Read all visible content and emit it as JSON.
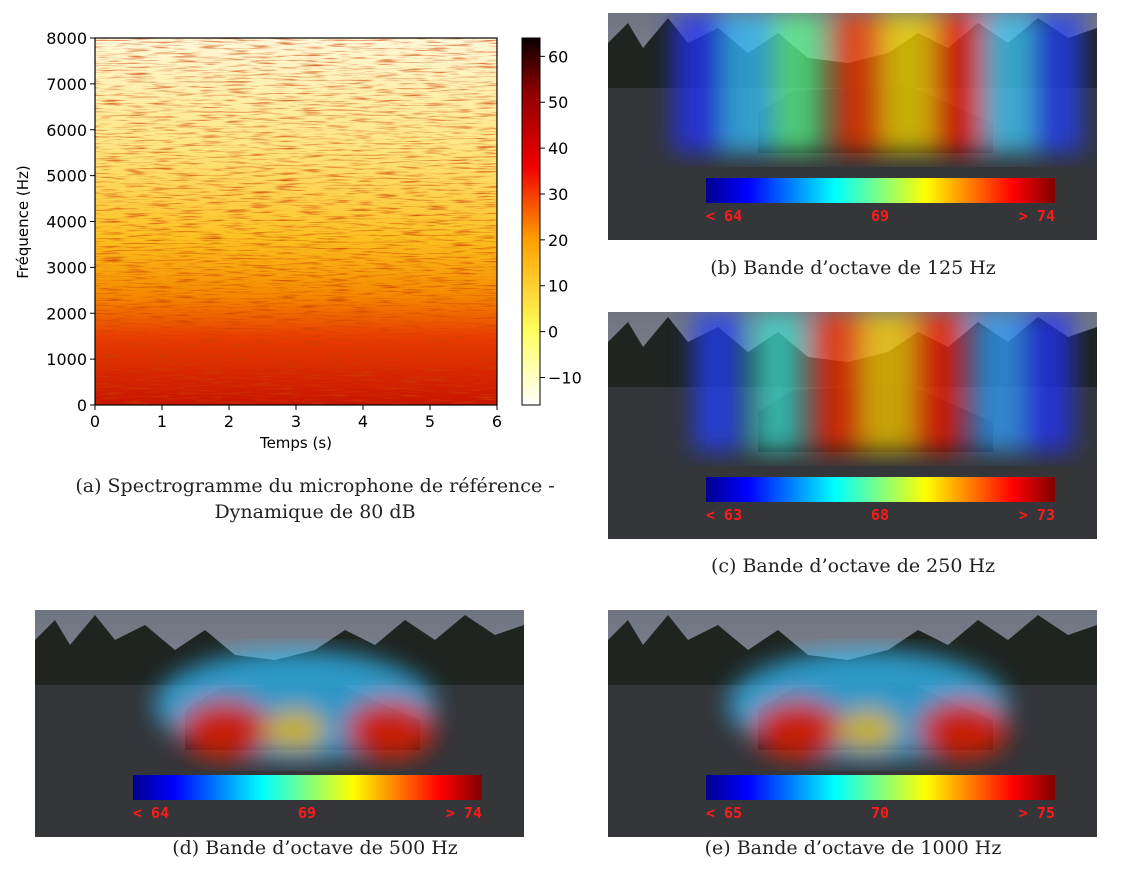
{
  "spectrogram": {
    "type": "spectrogram",
    "xlabel": "Temps (s)",
    "ylabel": "Fréquence (Hz)",
    "xlim": [
      0,
      6
    ],
    "xticks": [
      0,
      1,
      2,
      3,
      4,
      5,
      6
    ],
    "ylim": [
      0,
      8000
    ],
    "yticks": [
      0,
      1000,
      2000,
      3000,
      4000,
      5000,
      6000,
      7000,
      8000
    ],
    "colorbar": {
      "lim": [
        -16,
        64
      ],
      "ticks": [
        {
          "value": -10,
          "label": "−10"
        },
        0,
        10,
        20,
        30,
        40,
        50,
        60
      ]
    },
    "caption": [
      "(a) Spectrogramme du microphone de référence -",
      "Dynamique de 80 dB"
    ]
  },
  "images": [
    {
      "caption": "(b) Bande d’octave de 125 Hz",
      "scale_labels": [
        "< 64",
        "69",
        "> 74"
      ]
    },
    {
      "caption": "(c) Bande d’octave de 250 Hz",
      "scale_labels": [
        "< 63",
        "68",
        "> 73"
      ]
    },
    {
      "caption": "(d) Bande d’octave de 500 Hz",
      "scale_labels": [
        "< 64",
        "69",
        "> 74"
      ]
    },
    {
      "caption": "(e) Bande d’octave de 1000 Hz",
      "scale_labels": [
        "< 65",
        "70",
        "> 75"
      ]
    }
  ]
}
